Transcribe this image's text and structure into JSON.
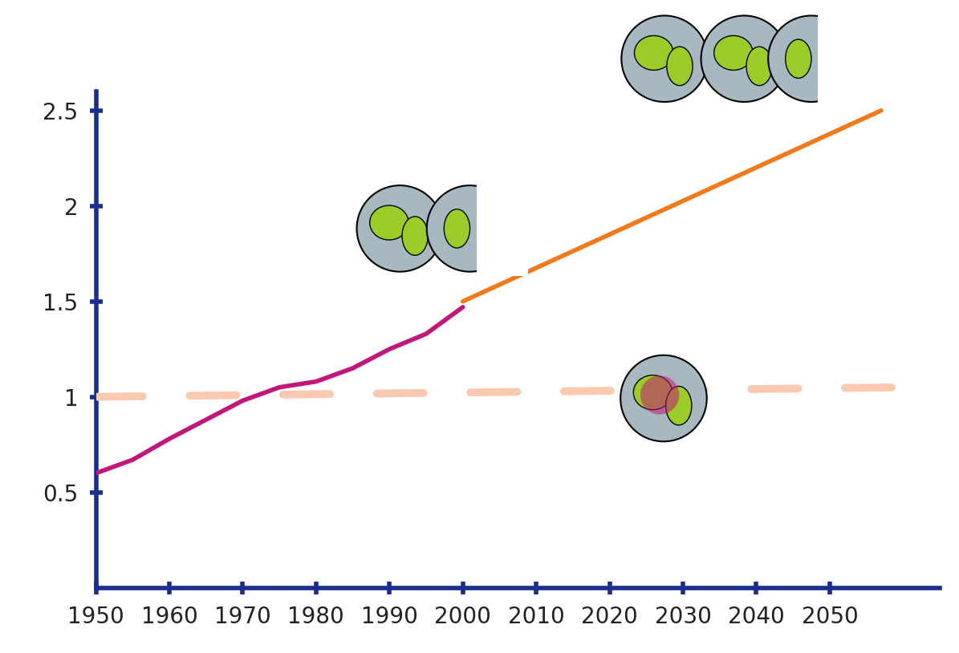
{
  "chart_data": {
    "type": "line",
    "xlim": [
      1950,
      2065
    ],
    "xticks": [
      1950,
      1960,
      1970,
      1980,
      1990,
      2000,
      2010,
      2020,
      2030,
      2040,
      2050
    ],
    "ylim": [
      0,
      2.6
    ],
    "yticks": [
      0.5,
      1,
      1.5,
      2,
      2.5
    ],
    "grid": false,
    "series": [
      {
        "color": "#c2177a",
        "line_style": "solid",
        "x": [
          1950,
          1955,
          1960,
          1965,
          1970,
          1975,
          1980,
          1985,
          1990,
          1995,
          2000
        ],
        "values": [
          0.6,
          0.67,
          0.78,
          0.88,
          0.98,
          1.05,
          1.08,
          1.15,
          1.25,
          1.33,
          1.47
        ]
      },
      {
        "color": "#f07a1c",
        "line_style": "solid",
        "x": [
          2000,
          2057
        ],
        "values": [
          1.5,
          2.5
        ]
      },
      {
        "color": "#f9c9b0",
        "line_style": "dashed",
        "x": [
          1950,
          2060
        ],
        "values": [
          1.0,
          1.05
        ]
      }
    ]
  }
}
